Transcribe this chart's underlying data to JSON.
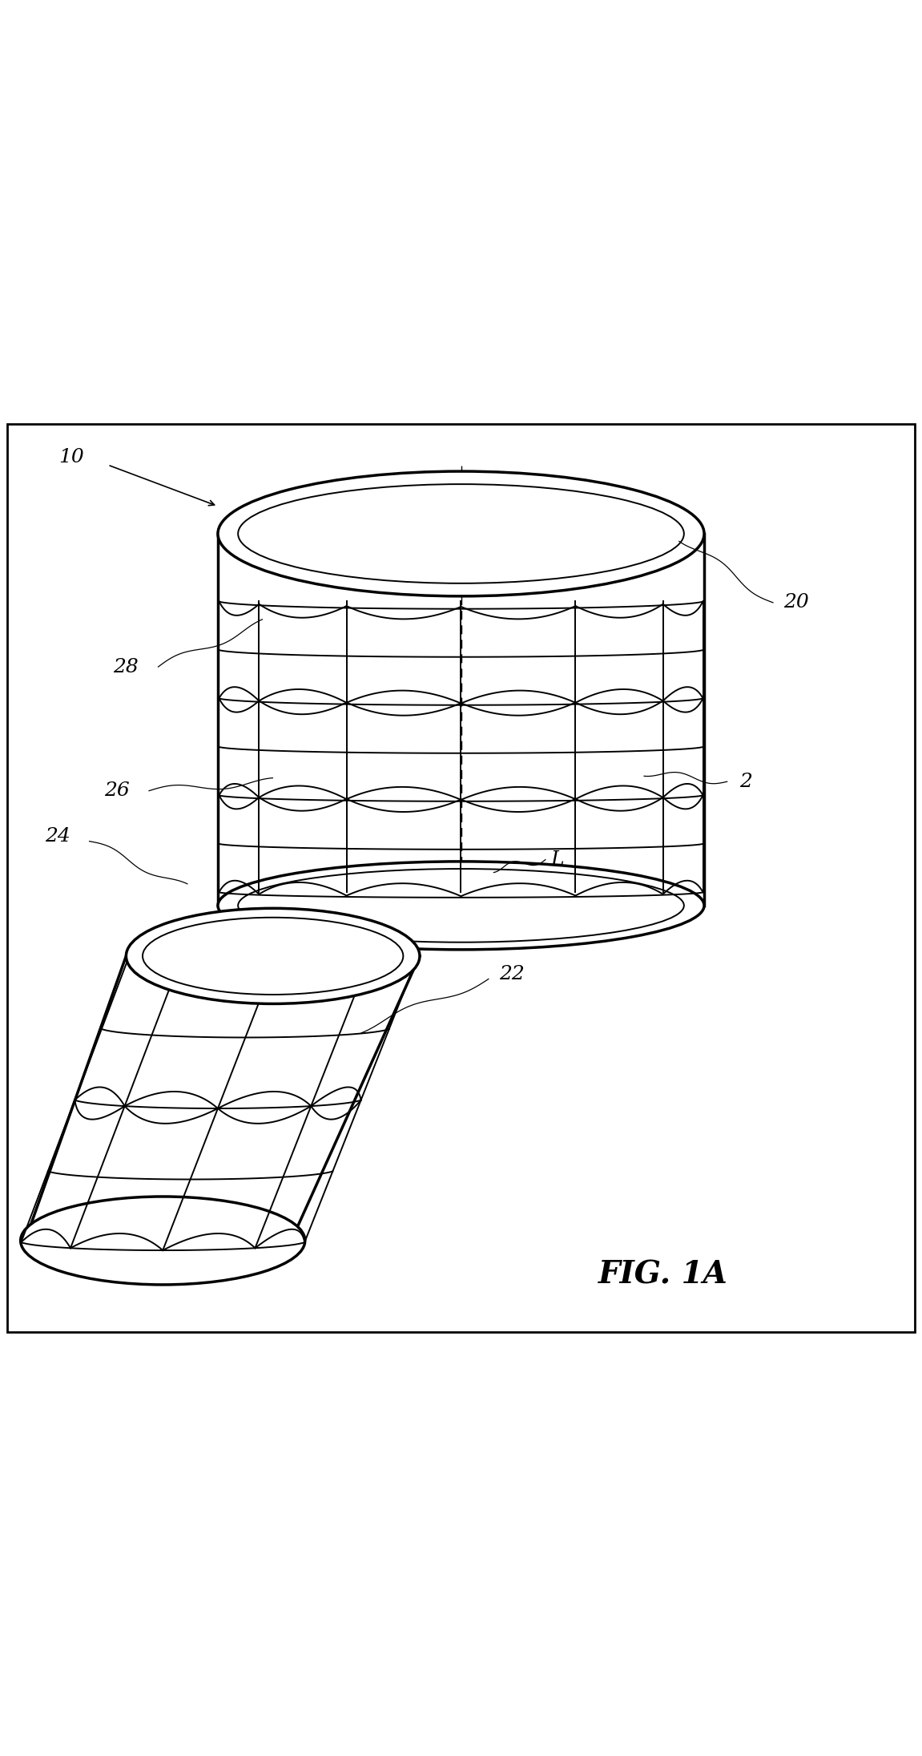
{
  "bg_color": "#ffffff",
  "line_color": "#000000",
  "fig_width": 11.51,
  "fig_height": 21.91,
  "title": "FIG. 1A",
  "label_fontsize": 18,
  "title_fontsize": 28
}
